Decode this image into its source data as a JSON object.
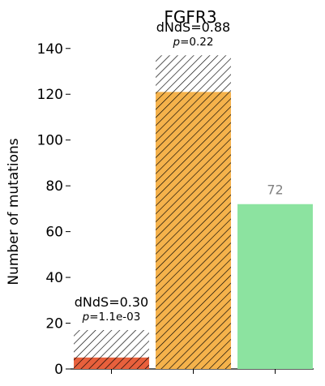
{
  "chart_data": {
    "type": "bar",
    "title": "FGFR3",
    "xlabel": "",
    "ylabel": "Number of mutations",
    "ylim": [
      0,
      147
    ],
    "yticks": [
      0,
      20,
      40,
      60,
      80,
      100,
      120,
      140
    ],
    "grid": false,
    "legend": "none",
    "bars": [
      {
        "total": 17,
        "observed": 5,
        "fill": "#e8603c",
        "hatched": true,
        "annotation_main": "dNdS=0.30",
        "annotation_p_prefix": "p",
        "annotation_p_value": "=1.1e-03"
      },
      {
        "total": 137,
        "observed": 121,
        "fill": "#f5b24b",
        "hatched": true,
        "annotation_main": "dNdS=0.88",
        "annotation_p_prefix": "p",
        "annotation_p_value": "=0.22"
      },
      {
        "total": 72,
        "observed": 72,
        "fill": "#8ce3a0",
        "hatched": false,
        "value_label": "72"
      }
    ]
  }
}
